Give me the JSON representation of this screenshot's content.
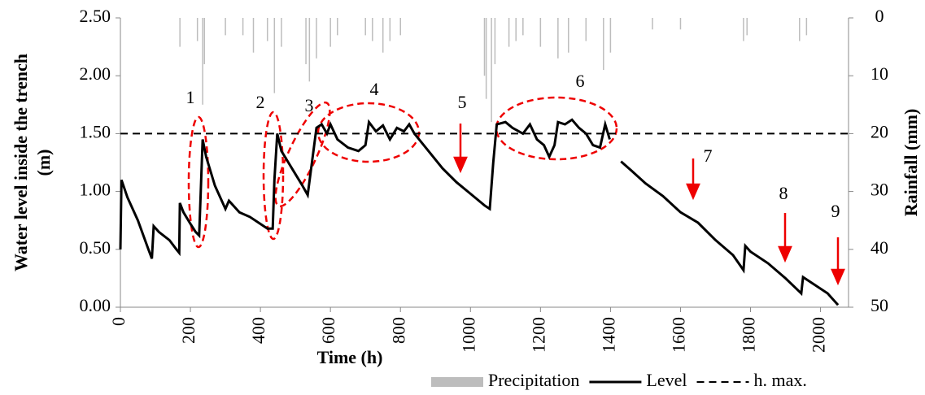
{
  "chart_data": {
    "type": "line",
    "xlabel": "Time (h)",
    "ylabel": [
      "Water level inside the trench",
      "(m)"
    ],
    "y2label": "Rainfall (mm)",
    "xlim": [
      0,
      2080
    ],
    "xticks": [
      0,
      200,
      400,
      600,
      800,
      1000,
      1200,
      1400,
      1600,
      1800,
      2000
    ],
    "ylim": [
      0,
      2.5
    ],
    "yticks": [
      {
        "value": 0,
        "label": "0.00"
      },
      {
        "value": 0.5,
        "label": "0.50"
      },
      {
        "value": 1,
        "label": "1.00"
      },
      {
        "value": 1.5,
        "label": "1.50"
      },
      {
        "value": 2,
        "label": "2.00"
      },
      {
        "value": 2.5,
        "label": "2.50"
      }
    ],
    "y2lim": [
      50,
      0
    ],
    "y2ticks": [
      0,
      10,
      20,
      30,
      40,
      50
    ],
    "series": [
      {
        "name": "Precipitation",
        "kind": "bar",
        "axis": "y2",
        "color": "#bdbdbd",
        "x": [
          170,
          220,
          235,
          240,
          300,
          350,
          380,
          420,
          440,
          460,
          530,
          540,
          560,
          600,
          620,
          700,
          720,
          750,
          770,
          800,
          1040,
          1045,
          1060,
          1070,
          1110,
          1130,
          1150,
          1200,
          1250,
          1280,
          1330,
          1380,
          1400,
          1520,
          1600,
          1780,
          1790,
          1940,
          1960
        ],
        "values": [
          5,
          4,
          15,
          8,
          3,
          3,
          6,
          4,
          13,
          5,
          8,
          11,
          7,
          5,
          3,
          3,
          4,
          6,
          4,
          3,
          10,
          14,
          18,
          8,
          5,
          4,
          3,
          5,
          7,
          6,
          4,
          9,
          6,
          2,
          2,
          4,
          3,
          4,
          3
        ]
      },
      {
        "name": "Level",
        "kind": "line",
        "color": "#000000",
        "x": [
          0,
          3,
          20,
          50,
          80,
          90,
          95,
          110,
          140,
          160,
          168,
          170,
          180,
          200,
          215,
          225,
          235,
          245,
          270,
          300,
          310,
          340,
          370,
          400,
          420,
          435,
          440,
          448,
          460,
          480,
          500,
          520,
          535,
          545,
          560,
          575,
          590,
          600,
          620,
          650,
          680,
          700,
          710,
          730,
          750,
          770,
          790,
          810,
          825,
          840,
          880,
          920,
          960,
          1000,
          1040,
          1055,
          1065,
          1075,
          1100,
          1120,
          1150,
          1170,
          1190,
          1210,
          1225,
          1240,
          1250,
          1270,
          1290,
          1310,
          1330,
          1350,
          1370,
          1385,
          1398,
          1410,
          1430,
          1460,
          1500,
          1550,
          1600,
          1650,
          1700,
          1750,
          1780,
          1785,
          1800,
          1850,
          1900,
          1945,
          1950,
          1980,
          2020,
          2050
        ],
        "values": [
          0.5,
          1.1,
          0.95,
          0.75,
          0.5,
          0.42,
          0.7,
          0.65,
          0.58,
          0.5,
          0.47,
          0.9,
          0.82,
          0.72,
          0.65,
          0.62,
          1.45,
          1.3,
          1.05,
          0.85,
          0.92,
          0.82,
          0.78,
          0.72,
          0.68,
          0.68,
          1.1,
          1.5,
          1.35,
          1.25,
          1.15,
          1.05,
          0.97,
          1.2,
          1.55,
          1.58,
          1.5,
          1.58,
          1.45,
          1.38,
          1.35,
          1.4,
          1.6,
          1.52,
          1.57,
          1.45,
          1.55,
          1.52,
          1.58,
          1.5,
          1.35,
          1.2,
          1.08,
          0.98,
          0.88,
          0.85,
          1.25,
          1.58,
          1.6,
          1.55,
          1.5,
          1.58,
          1.45,
          1.4,
          1.3,
          1.4,
          1.6,
          1.58,
          1.62,
          1.55,
          1.5,
          1.4,
          1.38,
          1.58,
          1.45,
          null,
          1.26,
          1.18,
          1.07,
          0.96,
          0.82,
          0.73,
          0.58,
          0.45,
          0.32,
          0.53,
          0.48,
          0.38,
          0.25,
          0.12,
          0.26,
          0.2,
          0.12,
          0.02
        ]
      },
      {
        "name": "h. max.",
        "kind": "dashed",
        "color": "#000000",
        "x": [
          0,
          2080
        ],
        "values": [
          1.5,
          1.5
        ]
      }
    ],
    "annotations": [
      "1",
      "2",
      "3",
      "4",
      "5",
      "6",
      "7",
      "8",
      "9"
    ]
  }
}
